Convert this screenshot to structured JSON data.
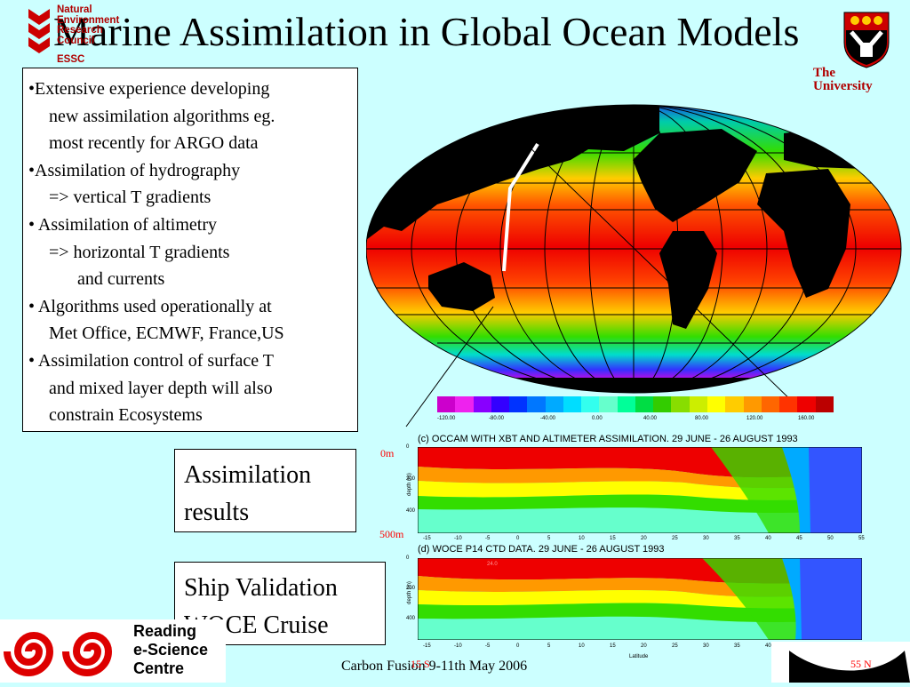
{
  "title": "Marine Assimilation in Global Ocean Models",
  "nerc": {
    "lines": [
      "Natural",
      "Environment",
      "Research",
      "Council",
      "ESSC"
    ],
    "color": "#b00000"
  },
  "university": {
    "lines": [
      "The",
      "University"
    ],
    "color": "#b00000"
  },
  "bullets": [
    {
      "text": "•Extensive experience developing",
      "indent": 0
    },
    {
      "text": "new assimilation algorithms eg.",
      "indent": 1
    },
    {
      "text": "most recently for ARGO data",
      "indent": 1
    },
    {
      "text": "•Assimilation of hydrography",
      "indent": 0
    },
    {
      "text": "=> vertical T gradients",
      "indent": 1
    },
    {
      "text": "• Assimilation of altimetry",
      "indent": 0
    },
    {
      "text": "=> horizontal T gradients",
      "indent": 1
    },
    {
      "text": "and currents",
      "indent": 2
    },
    {
      "text": "• Algorithms used operationally at",
      "indent": 0
    },
    {
      "text": "Met Office, ECMWF, France,US",
      "indent": 1
    },
    {
      "text": "• Assimilation control of surface T",
      "indent": 0
    },
    {
      "text": "and mixed layer depth will also",
      "indent": 1
    },
    {
      "text": "constrain Ecosystems",
      "indent": 1
    }
  ],
  "boxes": {
    "assimilation": [
      "Assimilation",
      "results"
    ],
    "ship": [
      "Ship Validation",
      "WOCE Cruise"
    ]
  },
  "colorbar": {
    "labels": [
      "-120.00",
      "-80.00",
      "-40.00",
      "0.00",
      "40.00",
      "80.00",
      "120.00",
      "160.00"
    ],
    "colors": [
      "#cc00cc",
      "#ee22ee",
      "#8800ff",
      "#3300ff",
      "#0033ff",
      "#0077ff",
      "#00aaff",
      "#00ddff",
      "#33ffee",
      "#66ffcc",
      "#00ff99",
      "#00dd44",
      "#33cc00",
      "#88dd00",
      "#ccee00",
      "#ffff00",
      "#ffcc00",
      "#ff9900",
      "#ff6600",
      "#ff3300",
      "#ee0000",
      "#bb0000"
    ]
  },
  "panels": {
    "c_title": "(c) OCCAM WITH XBT AND ALTIMETER ASSIMILATION.  29 JUNE - 26 AUGUST 1993",
    "d_title": "(d) WOCE P14 CTD DATA. 29 JUNE - 26 AUGUST 1993",
    "depth_label": "depth (m)",
    "depth_ticks": [
      "0",
      "200",
      "400"
    ],
    "lat_ticks": [
      "-15",
      "-10",
      "-5",
      "0",
      "5",
      "10",
      "15",
      "20",
      "25",
      "30",
      "35",
      "40",
      "45",
      "50",
      "55"
    ],
    "lat_label": "Latitude",
    "d_annotation": "24.0"
  },
  "labels": {
    "zero_m": "0m",
    "five_hundred_m": "500m",
    "fifteen_s": "15 S",
    "fifty_five_n": "55 N"
  },
  "resc": {
    "lines": [
      "Reading",
      "e-Science",
      "Centre"
    ]
  },
  "footer": "Carbon Fusion 9-11th May 2006"
}
